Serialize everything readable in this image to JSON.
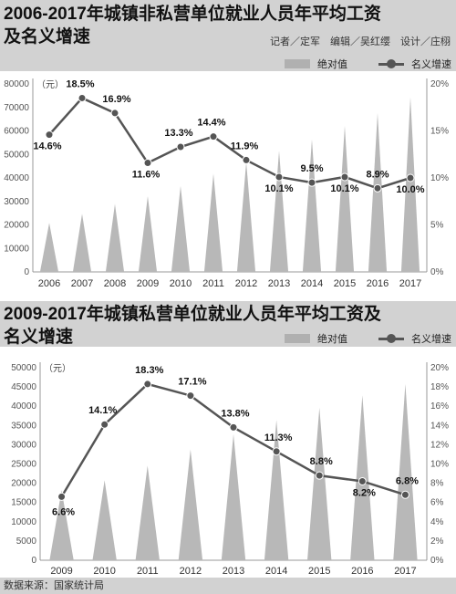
{
  "chart_data": [
    {
      "type": "area",
      "title": "2006-2017年城镇非私营单位就业人员年平均工资及名义增速",
      "unit": "（元）",
      "categories": [
        "2006",
        "2007",
        "2008",
        "2009",
        "2010",
        "2011",
        "2012",
        "2013",
        "2014",
        "2015",
        "2016",
        "2017"
      ],
      "legend": [
        "绝对值",
        "名义增速"
      ],
      "left_ticks": [
        "80000",
        "70000",
        "60000",
        "50000",
        "40000",
        "30000",
        "20000",
        "10000",
        "0"
      ],
      "right_ticks": [
        "20%",
        "15%",
        "10%",
        "5%",
        "0%"
      ],
      "ylim": [
        0,
        80000
      ],
      "y2lim": [
        0,
        20
      ],
      "series": [
        {
          "name": "绝对值",
          "type": "area",
          "values": [
            20856,
            24721,
            28898,
            32244,
            36539,
            41799,
            46769,
            51483,
            56360,
            62029,
            67569,
            74318
          ]
        },
        {
          "name": "名义增速",
          "type": "line",
          "values": [
            14.6,
            18.5,
            16.9,
            11.6,
            13.3,
            14.4,
            11.9,
            10.1,
            9.5,
            10.1,
            8.9,
            10.0
          ],
          "labels": [
            "14.6%",
            "18.5%",
            "16.9%",
            "11.6%",
            "13.3%",
            "14.4%",
            "11.9%",
            "10.1%",
            "9.5%",
            "10.1%",
            "8.9%",
            "10.0%"
          ]
        }
      ]
    },
    {
      "type": "area",
      "title": "2009-2017年城镇私营单位就业人员年平均工资及名义增速",
      "unit": "（元）",
      "categories": [
        "2009",
        "2010",
        "2011",
        "2012",
        "2013",
        "2014",
        "2015",
        "2016",
        "2017"
      ],
      "legend": [
        "绝对值",
        "名义增速"
      ],
      "left_ticks": [
        "50000",
        "45000",
        "40000",
        "35000",
        "30000",
        "25000",
        "20000",
        "15000",
        "10000",
        "5000",
        "0"
      ],
      "right_ticks": [
        "20%",
        "18%",
        "16%",
        "14%",
        "12%",
        "10%",
        "8%",
        "6%",
        "4%",
        "2%",
        "0%"
      ],
      "ylim": [
        0,
        50000
      ],
      "y2lim": [
        0,
        20
      ],
      "series": [
        {
          "name": "绝对值",
          "type": "area",
          "values": [
            18199,
            20759,
            24556,
            28752,
            32706,
            36390,
            39589,
            42833,
            45761
          ]
        },
        {
          "name": "名义增速",
          "type": "line",
          "values": [
            6.6,
            14.1,
            18.3,
            17.1,
            13.8,
            11.3,
            8.8,
            8.2,
            6.8
          ],
          "labels": [
            "6.6%",
            "14.1%",
            "18.3%",
            "17.1%",
            "13.8%",
            "11.3%",
            "8.8%",
            "8.2%",
            "6.8%"
          ]
        }
      ]
    }
  ],
  "header1": {
    "title_line1": "2006-2017年城镇非私营单位就业人员年平均工资",
    "title_line2": "及名义增速",
    "credits": "记者／定军　编辑／吴红缨　设计／庄栩"
  },
  "header2": {
    "title_line1": "2009-2017年城镇私营单位就业人员年平均工资及",
    "title_line2": "名义增速"
  },
  "footer": {
    "source": "数据来源：国家统计局"
  }
}
